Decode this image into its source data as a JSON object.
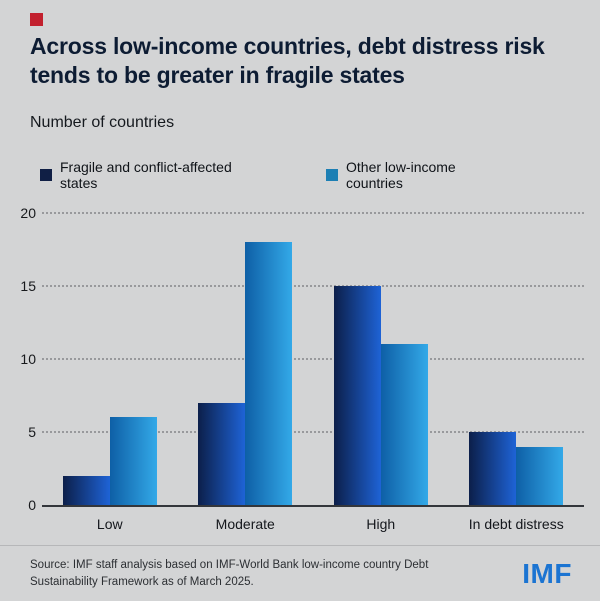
{
  "header": {
    "title": "Across low-income countries, debt distress risk tends to be greater in fragile states"
  },
  "subtitle": "Number of countries",
  "chart_data": {
    "type": "bar",
    "title": "Across low-income countries, debt distress risk tends to be greater in fragile states",
    "ylabel": "Number of countries",
    "categories": [
      "Low",
      "Moderate",
      "High",
      "In debt distress"
    ],
    "series": [
      {
        "name": "Fragile and conflict-affected states",
        "values": [
          2,
          7,
          15,
          5
        ],
        "color": "#101f45",
        "gradient": [
          "#0c1f4a",
          "#1e63d6"
        ]
      },
      {
        "name": "Other low-income countries",
        "values": [
          6,
          18,
          11,
          4
        ],
        "color": "#1c7fb4",
        "gradient": [
          "#0e5fa6",
          "#33a9e8"
        ]
      }
    ],
    "ylim": [
      0,
      20
    ],
    "yticks": [
      0,
      5,
      10,
      15,
      20
    ],
    "grid": "dotted horizontal",
    "legend_position": "top"
  },
  "footer": {
    "source": "Source: IMF staff analysis based on IMF-World Bank low-income country Debt Sustainability Framework as of March 2025.",
    "logo": "IMF"
  },
  "colors": {
    "background": "#d3d4d5",
    "brand_square": "#c2202e",
    "title_text": "#0d1c33",
    "logo_blue": "#1b74d2"
  }
}
